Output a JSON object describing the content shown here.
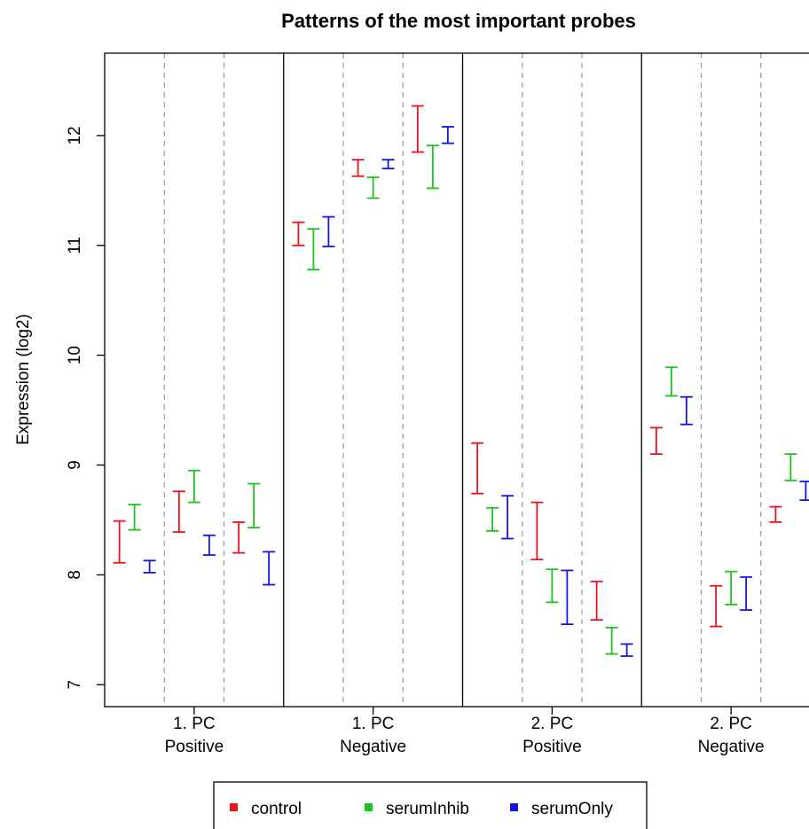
{
  "chart_data": {
    "type": "errorbar",
    "title": "Patterns of the most important probes",
    "ylabel": "Expression (log2)",
    "xlabel": "",
    "ylim": [
      6.8,
      12.75
    ],
    "yticks": [
      7,
      8,
      9,
      10,
      11,
      12
    ],
    "grid": false,
    "legend_position": "bottom",
    "panels": [
      {
        "label_line1": "1. PC",
        "label_line2": "Positive"
      },
      {
        "label_line1": "1. PC",
        "label_line2": "Negative"
      },
      {
        "label_line1": "2. PC",
        "label_line2": "Positive"
      },
      {
        "label_line1": "2. PC",
        "label_line2": "Negative"
      }
    ],
    "series": [
      {
        "name": "control",
        "color": "#e8141c",
        "ranges": [
          [
            [
              8.11,
              8.49
            ],
            [
              8.39,
              8.76
            ],
            [
              8.2,
              8.48
            ]
          ],
          [
            [
              11.0,
              11.21
            ],
            [
              11.63,
              11.78
            ],
            [
              11.85,
              12.27
            ]
          ],
          [
            [
              8.74,
              9.2
            ],
            [
              8.14,
              8.66
            ],
            [
              7.59,
              7.94
            ]
          ],
          [
            [
              9.1,
              9.34
            ],
            [
              7.53,
              7.9
            ],
            [
              8.48,
              8.62
            ]
          ]
        ]
      },
      {
        "name": "serumInhib",
        "color": "#1ec41e",
        "ranges": [
          [
            [
              8.41,
              8.64
            ],
            [
              8.66,
              8.95
            ],
            [
              8.43,
              8.83
            ]
          ],
          [
            [
              10.78,
              11.15
            ],
            [
              11.43,
              11.62
            ],
            [
              11.52,
              11.91
            ]
          ],
          [
            [
              8.4,
              8.61
            ],
            [
              7.75,
              8.05
            ],
            [
              7.28,
              7.52
            ]
          ],
          [
            [
              9.63,
              9.89
            ],
            [
              7.73,
              8.03
            ],
            [
              8.86,
              9.1
            ]
          ]
        ]
      },
      {
        "name": "serumOnly",
        "color": "#1414e6",
        "ranges": [
          [
            [
              8.02,
              8.13
            ],
            [
              8.18,
              8.36
            ],
            [
              7.91,
              8.21
            ]
          ],
          [
            [
              10.99,
              11.26
            ],
            [
              11.7,
              11.78
            ],
            [
              11.93,
              12.08
            ]
          ],
          [
            [
              8.33,
              8.72
            ],
            [
              7.55,
              8.04
            ],
            [
              7.26,
              7.37
            ]
          ],
          [
            [
              9.37,
              9.62
            ],
            [
              7.68,
              7.98
            ],
            [
              8.68,
              8.85
            ]
          ]
        ]
      }
    ]
  }
}
